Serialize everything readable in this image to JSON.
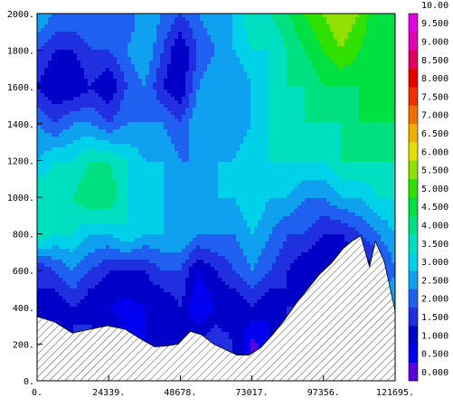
{
  "chart_data": {
    "type": "heatmap",
    "subtype": "filled-contour",
    "title": "",
    "xlabel": "",
    "ylabel": "",
    "xlim": [
      0,
      121695
    ],
    "ylim": [
      0,
      2000
    ],
    "x_ticks": [
      0,
      24339,
      48678,
      73017,
      97356,
      121695
    ],
    "x_tick_labels": [
      "0.",
      "24339.",
      "48678.",
      "73017.",
      "97356.",
      "121695."
    ],
    "y_ticks": [
      0,
      200,
      400,
      600,
      800,
      1000,
      1200,
      1400,
      1600,
      1800,
      2000
    ],
    "y_tick_labels": [
      "0.",
      "200.",
      "400.",
      "600.",
      "800.",
      "1000.",
      "1200.",
      "1400.",
      "1600.",
      "1800.",
      "2000."
    ],
    "colorbar": {
      "levels": [
        "0.000",
        "0.500",
        "1.000",
        "1.500",
        "2.000",
        "2.500",
        "3.000",
        "3.500",
        "4.000",
        "4.500",
        "5.000",
        "5.500",
        "6.000",
        "6.500",
        "7.000",
        "7.500",
        "8.000",
        "8.500",
        "9.000",
        "9.500",
        "10.00"
      ],
      "colors": [
        "#5a00d8",
        "#0000f0",
        "#0000c8",
        "#2030e0",
        "#2060f0",
        "#10a0f0",
        "#00d0e8",
        "#00e0c0",
        "#00e080",
        "#00e040",
        "#30e000",
        "#90e000",
        "#e0e000",
        "#f0b000",
        "#f07000",
        "#f03000",
        "#e80000",
        "#e00060",
        "#e000b0",
        "#e000e0"
      ]
    },
    "terrain": {
      "x": [
        0,
        6000,
        12000,
        18000,
        24000,
        30000,
        36000,
        40000,
        44000,
        48000,
        52000,
        56000,
        60000,
        64000,
        68000,
        72000,
        76000,
        80000,
        84000,
        88000,
        92000,
        96000,
        100000,
        104000,
        107000,
        110000,
        113000,
        115000,
        118000,
        121695
      ],
      "y": [
        350,
        320,
        260,
        280,
        300,
        280,
        220,
        185,
        190,
        200,
        270,
        250,
        200,
        170,
        140,
        140,
        180,
        250,
        330,
        420,
        500,
        580,
        640,
        720,
        760,
        790,
        620,
        760,
        650,
        380
      ]
    },
    "field": {
      "x": [
        0,
        6085,
        12170,
        18255,
        24339,
        30424,
        36509,
        42594,
        48678,
        54763,
        60848,
        66933,
        73017,
        79102,
        85187,
        91272,
        97356,
        103441,
        109526,
        115611,
        121695
      ],
      "y": [
        200,
        400,
        600,
        800,
        1000,
        1200,
        1400,
        1600,
        1800,
        2000
      ],
      "z": [
        [
          1.5,
          1.0,
          1.5,
          2.0,
          1.5,
          1.0,
          1.0,
          1.0,
          1.0,
          1.5,
          2.0,
          1.5,
          0.3,
          1.0,
          1.5,
          2.0,
          2.5,
          3.0,
          3.0,
          3.0,
          3.0
        ],
        [
          1.5,
          1.0,
          1.5,
          1.0,
          1.0,
          0.8,
          1.0,
          1.0,
          1.5,
          0.5,
          1.0,
          1.0,
          1.5,
          1.0,
          1.5,
          1.5,
          2.5,
          3.0,
          3.0,
          3.5,
          3.0
        ],
        [
          1.5,
          2.0,
          2.5,
          2.0,
          1.5,
          1.5,
          1.5,
          2.0,
          2.0,
          1.0,
          1.5,
          2.0,
          2.5,
          2.0,
          1.5,
          1.0,
          1.0,
          0.8,
          1.0,
          1.5,
          2.5
        ],
        [
          4.0,
          3.5,
          3.5,
          3.0,
          3.0,
          3.5,
          3.0,
          3.0,
          3.0,
          2.5,
          2.5,
          2.5,
          3.0,
          2.5,
          2.0,
          2.0,
          1.5,
          1.5,
          2.0,
          2.5,
          3.0
        ],
        [
          4.0,
          4.0,
          4.0,
          4.5,
          4.5,
          3.5,
          3.5,
          3.0,
          2.5,
          3.0,
          3.0,
          3.0,
          3.5,
          3.0,
          3.0,
          2.5,
          2.5,
          3.0,
          3.0,
          3.5,
          3.5
        ],
        [
          3.0,
          3.5,
          3.5,
          4.0,
          4.0,
          3.5,
          3.0,
          3.0,
          2.5,
          2.5,
          3.0,
          3.0,
          3.5,
          3.5,
          3.5,
          3.5,
          3.5,
          4.0,
          4.0,
          4.0,
          4.0
        ],
        [
          2.5,
          2.0,
          2.5,
          2.5,
          2.0,
          2.5,
          2.5,
          2.5,
          2.0,
          3.0,
          3.0,
          2.5,
          3.0,
          3.5,
          3.5,
          4.0,
          4.0,
          4.0,
          4.5,
          4.5,
          4.5
        ],
        [
          1.5,
          1.0,
          1.0,
          1.5,
          1.0,
          2.0,
          2.5,
          1.5,
          1.0,
          2.5,
          3.0,
          2.5,
          3.0,
          3.5,
          4.0,
          4.0,
          4.5,
          4.5,
          4.5,
          4.5,
          4.5
        ],
        [
          2.0,
          1.5,
          1.5,
          2.0,
          2.0,
          2.5,
          3.0,
          2.0,
          1.0,
          2.0,
          2.5,
          3.0,
          3.5,
          3.5,
          4.0,
          4.5,
          5.0,
          5.5,
          5.0,
          4.5,
          4.5
        ],
        [
          3.0,
          2.5,
          2.5,
          2.5,
          2.0,
          2.0,
          3.0,
          2.5,
          2.0,
          2.5,
          3.0,
          3.0,
          4.0,
          4.0,
          4.5,
          5.0,
          5.5,
          6.0,
          5.5,
          4.5,
          4.5
        ]
      ]
    }
  }
}
